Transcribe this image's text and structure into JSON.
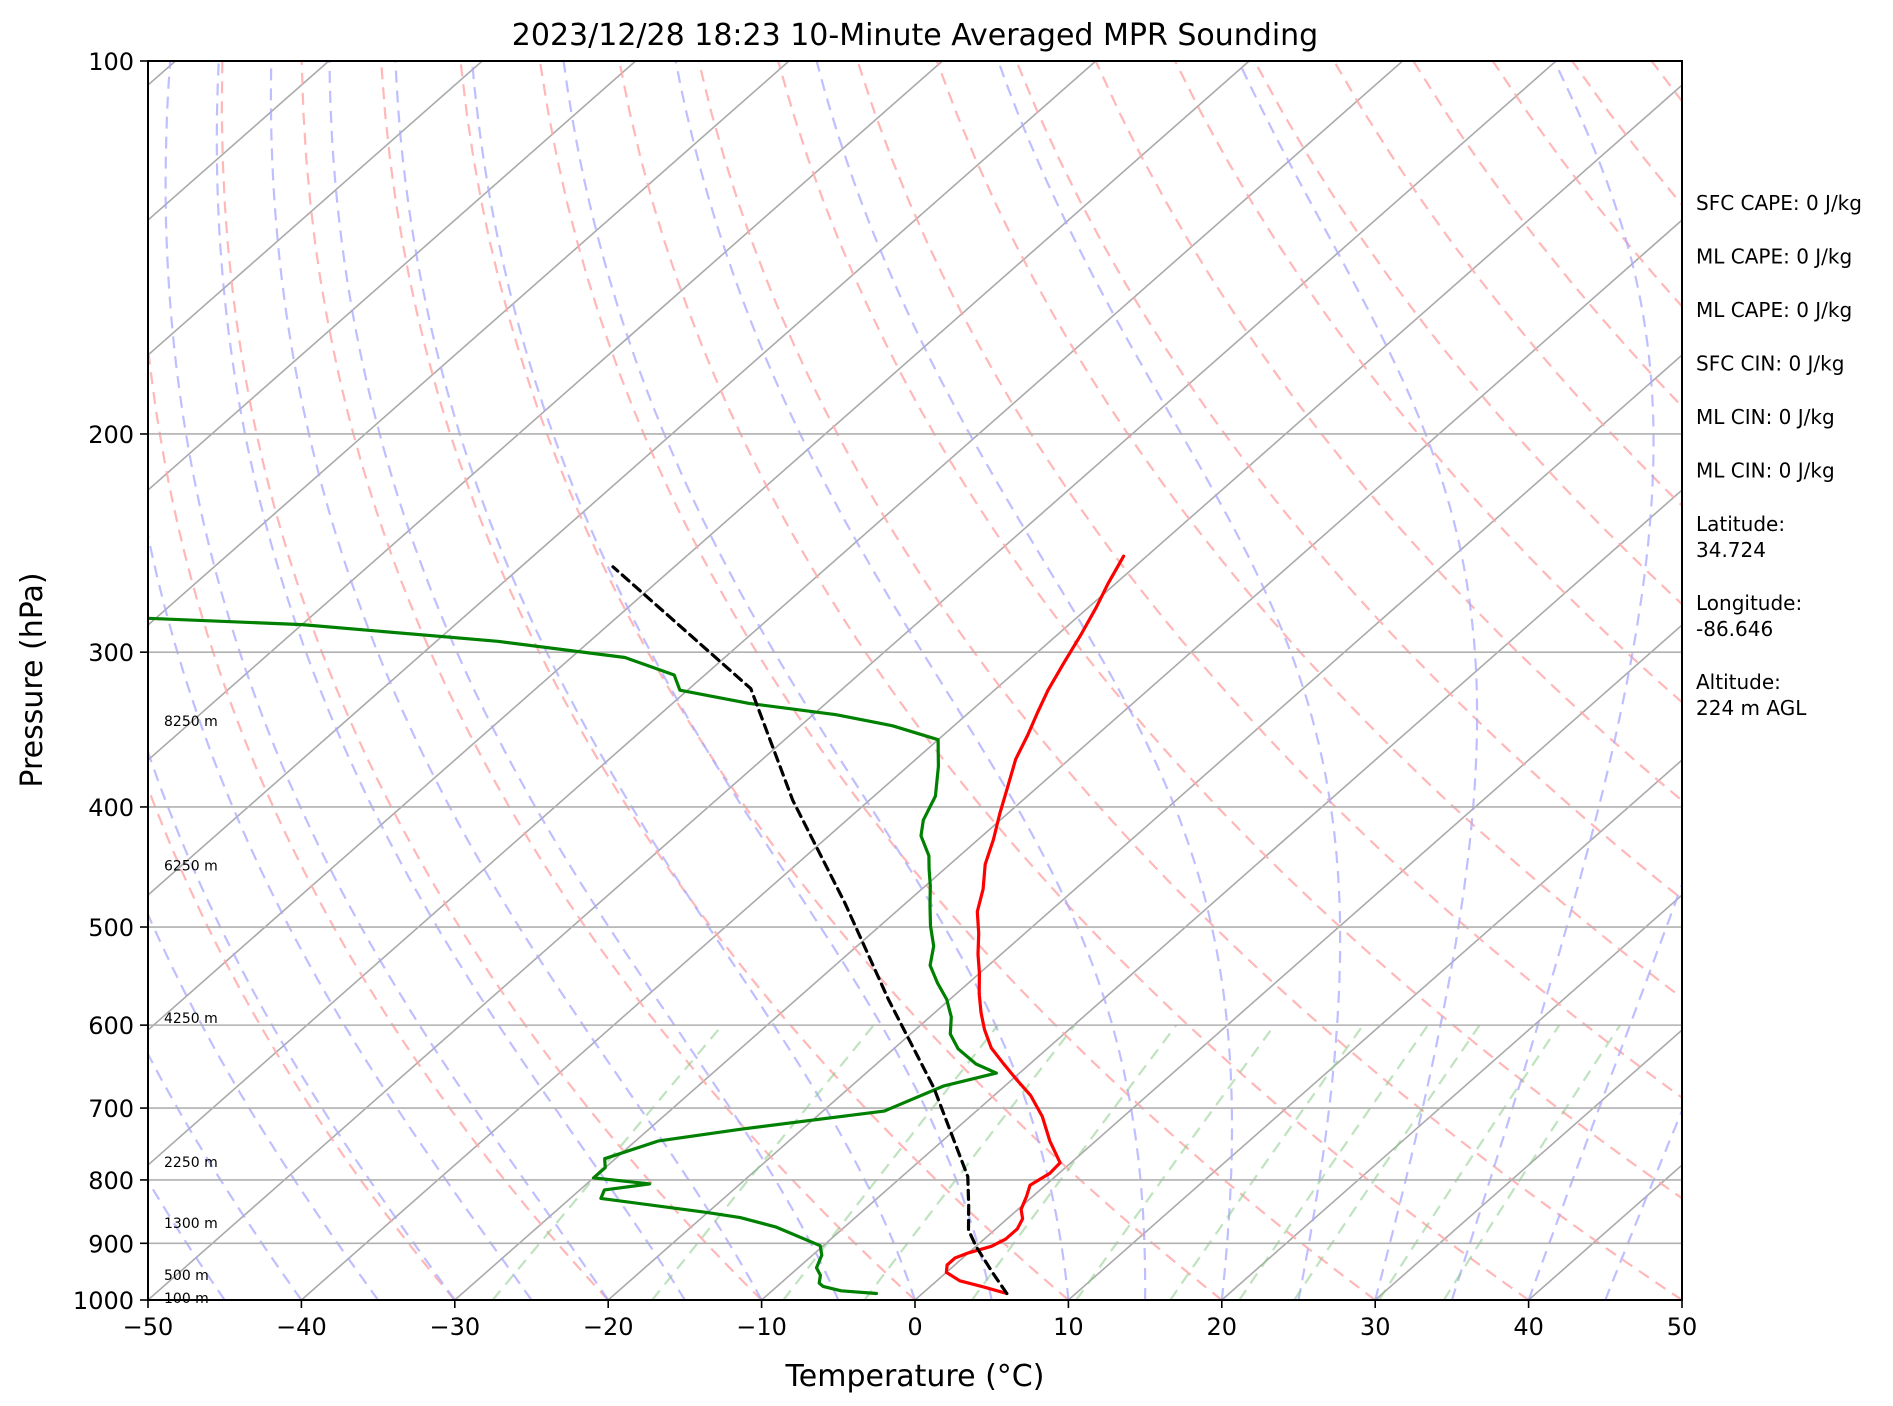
{
  "chart_data": {
    "type": "line",
    "title": "2023/12/28 18:23 10-Minute Averaged MPR Sounding",
    "xlabel": "Temperature (°C)",
    "ylabel": "Pressure (hPa)",
    "xlim": [
      -50,
      50
    ],
    "ylim": [
      1000,
      100
    ],
    "y_scale": "log",
    "skew": "temperature lines slanted (skew-T log-p diagram)",
    "grid": true,
    "x_ticks": [
      "−50",
      "−40",
      "−30",
      "−20",
      "−10",
      "0",
      "10",
      "20",
      "30",
      "40",
      "50"
    ],
    "y_ticks": [
      "100",
      "200",
      "300",
      "400",
      "500",
      "600",
      "700",
      "800",
      "900",
      "1000"
    ],
    "height_labels": [
      {
        "text": "100 m",
        "p": 996
      },
      {
        "text": "500 m",
        "p": 955
      },
      {
        "text": "1300 m",
        "p": 867
      },
      {
        "text": "2250 m",
        "p": 774
      },
      {
        "text": "4250 m",
        "p": 592
      },
      {
        "text": "6250 m",
        "p": 446
      },
      {
        "text": "8250 m",
        "p": 341
      }
    ],
    "series": [
      {
        "role": "temperature",
        "color": "#ff0000",
        "points": [
          [
            5.5,
            988
          ],
          [
            3.5,
            976
          ],
          [
            1.5,
            965
          ],
          [
            0,
            950
          ],
          [
            -0.5,
            937
          ],
          [
            -0.5,
            925
          ],
          [
            0,
            916
          ],
          [
            1,
            905
          ],
          [
            1.4,
            893
          ],
          [
            1.4,
            876
          ],
          [
            1,
            860
          ],
          [
            0.2,
            845
          ],
          [
            -0.4,
            825
          ],
          [
            -1,
            808
          ],
          [
            -0.6,
            790
          ],
          [
            -0.7,
            775
          ],
          [
            -3,
            744
          ],
          [
            -5.3,
            711
          ],
          [
            -7.6,
            684
          ],
          [
            -9.8,
            663
          ],
          [
            -11.8,
            644
          ],
          [
            -13.7,
            626
          ],
          [
            -15.5,
            605
          ],
          [
            -17,
            586
          ],
          [
            -18.5,
            566
          ],
          [
            -20,
            545
          ],
          [
            -21.5,
            526
          ],
          [
            -23,
            506
          ],
          [
            -24.7,
            486
          ],
          [
            -26,
            466
          ],
          [
            -27.7,
            445
          ],
          [
            -29,
            425
          ],
          [
            -30.5,
            405
          ],
          [
            -32,
            385
          ],
          [
            -33.5,
            366
          ],
          [
            -34.5,
            350
          ],
          [
            -35.5,
            336
          ],
          [
            -36.5,
            322
          ],
          [
            -37.5,
            306
          ],
          [
            -38.5,
            290
          ],
          [
            -39.5,
            276
          ],
          [
            -40.5,
            264
          ],
          [
            -41.5,
            251
          ]
        ]
      },
      {
        "role": "dewpoint",
        "color": "#008000",
        "points": [
          [
            -3,
            988
          ],
          [
            -5.5,
            983
          ],
          [
            -7,
            975
          ],
          [
            -7.5,
            969
          ],
          [
            -8,
            955
          ],
          [
            -8.8,
            942
          ],
          [
            -9.4,
            920
          ],
          [
            -10.2,
            904
          ],
          [
            -14.5,
            873
          ],
          [
            -17.5,
            858
          ],
          [
            -20,
            850
          ],
          [
            -28,
            828
          ],
          [
            -28.4,
            815
          ],
          [
            -25.9,
            806
          ],
          [
            -30,
            797
          ],
          [
            -30,
            782
          ],
          [
            -30.7,
            769
          ],
          [
            -28.5,
            744
          ],
          [
            -24,
            728
          ],
          [
            -16,
            704
          ],
          [
            -14,
            672
          ],
          [
            -11.5,
            656
          ],
          [
            -13.5,
            645
          ],
          [
            -15.8,
            627
          ],
          [
            -17.4,
            610
          ],
          [
            -18.6,
            591
          ],
          [
            -20.2,
            572
          ],
          [
            -22,
            555
          ],
          [
            -23.8,
            537
          ],
          [
            -25,
            518
          ],
          [
            -26.7,
            499
          ],
          [
            -28.2,
            481
          ],
          [
            -29.7,
            463
          ],
          [
            -31,
            449
          ],
          [
            -32,
            438
          ],
          [
            -34,
            422
          ],
          [
            -35,
            410
          ],
          [
            -36,
            392
          ],
          [
            -38,
            371
          ],
          [
            -40,
            353
          ],
          [
            -44,
            344
          ],
          [
            -48.5,
            337
          ],
          [
            -55,
            330
          ],
          [
            -60.5,
            322
          ],
          [
            -62,
            313
          ],
          [
            -66.5,
            303
          ],
          [
            -76,
            294
          ],
          [
            -90,
            285
          ],
          [
            -106,
            280
          ],
          [
            -120,
            276
          ]
        ]
      },
      {
        "role": "parcel profile",
        "color": "#000000",
        "dashed": true,
        "points": [
          [
            5.5,
            988
          ],
          [
            3,
            950
          ],
          [
            0,
            905
          ],
          [
            -1.7,
            878
          ],
          [
            -3.5,
            839
          ],
          [
            -5.7,
            795
          ],
          [
            -14.5,
            674
          ],
          [
            -24,
            572
          ],
          [
            -34,
            478
          ],
          [
            -45,
            395
          ],
          [
            -56,
            321
          ],
          [
            -74,
            256
          ]
        ]
      }
    ],
    "background_lines": [
      {
        "name": "isotherms",
        "color": "#aaaaaa"
      },
      {
        "name": "dry adiabats",
        "color": "#ffaaaa",
        "dashed": true
      },
      {
        "name": "moist adiabats",
        "color": "#aaaaff",
        "dashed": true
      },
      {
        "name": "mixing ratio lines",
        "color": "#88cc88",
        "dashed": true
      }
    ]
  },
  "side_panel": {
    "items": [
      {
        "text": "SFC CAPE: 0 J/kg"
      },
      {
        "text": "ML CAPE: 0 J/kg"
      },
      {
        "text": "ML CAPE: 0 J/kg"
      },
      {
        "text": "SFC CIN: 0 J/kg"
      },
      {
        "text": "ML CIN: 0 J/kg"
      },
      {
        "text": "ML CIN: 0 J/kg"
      },
      {
        "text": "Latitude:",
        "sub": "34.724"
      },
      {
        "text": "Longitude:",
        "sub": "-86.646"
      },
      {
        "text": "Altitude:",
        "sub": "224 m AGL"
      }
    ]
  }
}
